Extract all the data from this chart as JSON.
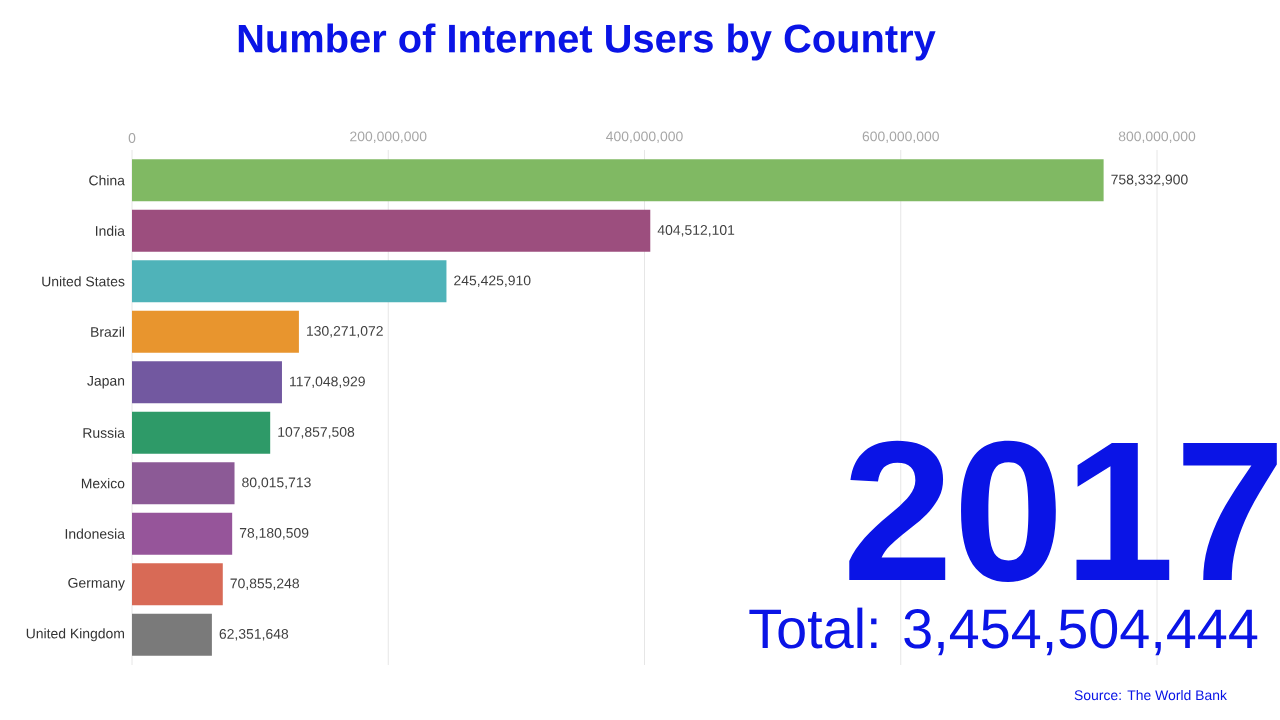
{
  "chart_data": {
    "type": "bar",
    "orientation": "horizontal",
    "title": "Number of Internet Users by Country",
    "categories": [
      "China",
      "India",
      "United States",
      "Brazil",
      "Japan",
      "Russia",
      "Mexico",
      "Indonesia",
      "Germany",
      "United Kingdom"
    ],
    "values": [
      758332900,
      404512101,
      245425910,
      130271072,
      117048929,
      107857508,
      80015713,
      78180509,
      70855248,
      62351648
    ],
    "colors": [
      "#80b963",
      "#9c4e7e",
      "#4fb3b9",
      "#e8952e",
      "#7258a0",
      "#2e9a68",
      "#8c5a96",
      "#96559a",
      "#d86a56",
      "#7a7a7a"
    ],
    "value_labels": [
      "758,332,900",
      "404,512,101",
      "245,425,910",
      "130,271,072",
      "117,048,929",
      "107,857,508",
      "80,015,713",
      "78,180,509",
      "70,855,248",
      "62,351,648"
    ],
    "xlim": [
      0,
      800000000
    ],
    "xticks": [
      {
        "value": 0,
        "label": "0"
      },
      {
        "value": 200000000,
        "label": "200,000,000"
      },
      {
        "value": 400000000,
        "label": "400,000,000"
      },
      {
        "value": 600000000,
        "label": "600,000,000"
      },
      {
        "value": 800000000,
        "label": "800,000,000"
      }
    ],
    "grid": "x",
    "annotations": [
      "2017",
      "Total: 3,454,504,444",
      "Source: The World Bank"
    ]
  }
}
